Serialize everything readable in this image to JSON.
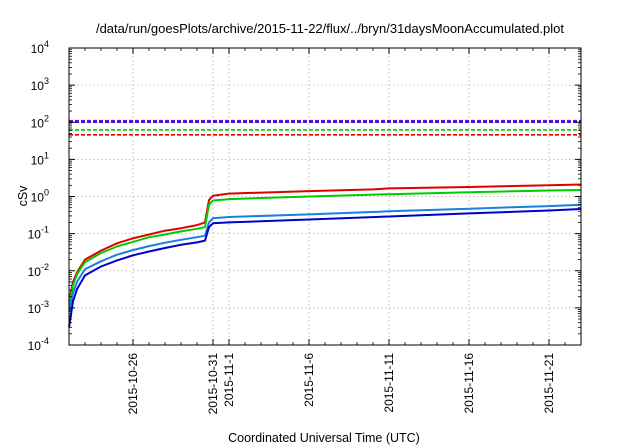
{
  "chart_data": {
    "type": "line",
    "title": "/data/run/goesPlots/archive/2015-11-22/flux/../bryn/31daysMoonAccumulated.plot",
    "xlabel": "Coordinated Universal Time (UTC)",
    "ylabel": "cSv",
    "yscale": "log",
    "ylim": [
      0.0001,
      10000
    ],
    "xlim": [
      "2015-10-22",
      "2015-11-23"
    ],
    "grid": true,
    "x_ticks": [
      "2015-10-26",
      "2015-10-31",
      "2015-11-1",
      "2015-11-6",
      "2015-11-11",
      "2015-11-16",
      "2015-11-21"
    ],
    "x_tick_dates": [
      "2015-10-26",
      "2015-10-31",
      "2015-11-01",
      "2015-11-06",
      "2015-11-11",
      "2015-11-16",
      "2015-11-21"
    ],
    "y_ticks": [
      {
        "base": "10",
        "exp": "-4",
        "value": 0.0001
      },
      {
        "base": "10",
        "exp": "-3",
        "value": 0.001
      },
      {
        "base": "10",
        "exp": "-2",
        "value": 0.01
      },
      {
        "base": "10",
        "exp": "-1",
        "value": 0.1
      },
      {
        "base": "10",
        "exp": "0",
        "value": 1
      },
      {
        "base": "10",
        "exp": "1",
        "value": 10
      },
      {
        "base": "10",
        "exp": "2",
        "value": 100
      },
      {
        "base": "10",
        "exp": "3",
        "value": 1000
      },
      {
        "base": "10",
        "exp": "4",
        "value": 10000
      }
    ],
    "reference_lines": [
      {
        "value": 110,
        "color": "#7b00d4"
      },
      {
        "value": 100,
        "color": "#1f1fd8"
      },
      {
        "value": 62,
        "color": "#00cc00"
      },
      {
        "value": 46,
        "color": "#e00000"
      }
    ],
    "series": [
      {
        "color": "#e00000",
        "points": [
          [
            "2015-10-22",
            0.0015
          ],
          [
            "2015-10-22T06:00",
            0.005
          ],
          [
            "2015-10-22T12:00",
            0.009
          ],
          [
            "2015-10-23",
            0.02
          ],
          [
            "2015-10-24",
            0.035
          ],
          [
            "2015-10-25",
            0.055
          ],
          [
            "2015-10-26",
            0.075
          ],
          [
            "2015-10-27",
            0.095
          ],
          [
            "2015-10-28",
            0.12
          ],
          [
            "2015-10-29",
            0.14
          ],
          [
            "2015-10-30",
            0.17
          ],
          [
            "2015-10-30T12:00",
            0.2
          ],
          [
            "2015-10-30T18:00",
            0.8
          ],
          [
            "2015-10-31",
            1.05
          ],
          [
            "2015-11-01",
            1.2
          ],
          [
            "2015-11-06",
            1.4
          ],
          [
            "2015-11-10",
            1.55
          ],
          [
            "2015-11-11",
            1.65
          ],
          [
            "2015-11-16",
            1.8
          ],
          [
            "2015-11-21",
            2.0
          ],
          [
            "2015-11-23",
            2.1
          ]
        ]
      },
      {
        "color": "#00cc00",
        "points": [
          [
            "2015-10-22",
            0.0012
          ],
          [
            "2015-10-22T06:00",
            0.004
          ],
          [
            "2015-10-22T12:00",
            0.008
          ],
          [
            "2015-10-23",
            0.017
          ],
          [
            "2015-10-24",
            0.03
          ],
          [
            "2015-10-25",
            0.045
          ],
          [
            "2015-10-26",
            0.06
          ],
          [
            "2015-10-27",
            0.08
          ],
          [
            "2015-10-28",
            0.095
          ],
          [
            "2015-10-29",
            0.115
          ],
          [
            "2015-10-30",
            0.135
          ],
          [
            "2015-10-30T12:00",
            0.15
          ],
          [
            "2015-10-30T18:00",
            0.6
          ],
          [
            "2015-10-31",
            0.78
          ],
          [
            "2015-11-01",
            0.85
          ],
          [
            "2015-11-06",
            1.0
          ],
          [
            "2015-11-11",
            1.15
          ],
          [
            "2015-11-16",
            1.3
          ],
          [
            "2015-11-21",
            1.45
          ],
          [
            "2015-11-23",
            1.5
          ]
        ]
      },
      {
        "color": "#1a7fe0",
        "points": [
          [
            "2015-10-22",
            0.0008
          ],
          [
            "2015-10-22T06:00",
            0.0025
          ],
          [
            "2015-10-22T12:00",
            0.005
          ],
          [
            "2015-10-23",
            0.011
          ],
          [
            "2015-10-24",
            0.018
          ],
          [
            "2015-10-25",
            0.027
          ],
          [
            "2015-10-26",
            0.036
          ],
          [
            "2015-10-27",
            0.046
          ],
          [
            "2015-10-28",
            0.057
          ],
          [
            "2015-10-29",
            0.068
          ],
          [
            "2015-10-30",
            0.08
          ],
          [
            "2015-10-30T12:00",
            0.088
          ],
          [
            "2015-10-30T18:00",
            0.2
          ],
          [
            "2015-10-31",
            0.26
          ],
          [
            "2015-11-01",
            0.28
          ],
          [
            "2015-11-06",
            0.33
          ],
          [
            "2015-11-11",
            0.4
          ],
          [
            "2015-11-16",
            0.47
          ],
          [
            "2015-11-21",
            0.55
          ],
          [
            "2015-11-23",
            0.6
          ]
        ]
      },
      {
        "color": "#0000cc",
        "points": [
          [
            "2015-10-22",
            0.0003
          ],
          [
            "2015-10-22T06:00",
            0.0015
          ],
          [
            "2015-10-22T12:00",
            0.0032
          ],
          [
            "2015-10-23",
            0.0075
          ],
          [
            "2015-10-24",
            0.013
          ],
          [
            "2015-10-25",
            0.019
          ],
          [
            "2015-10-26",
            0.026
          ],
          [
            "2015-10-27",
            0.033
          ],
          [
            "2015-10-28",
            0.041
          ],
          [
            "2015-10-29",
            0.05
          ],
          [
            "2015-10-30",
            0.058
          ],
          [
            "2015-10-30T12:00",
            0.065
          ],
          [
            "2015-10-30T18:00",
            0.15
          ],
          [
            "2015-10-31",
            0.19
          ],
          [
            "2015-11-01",
            0.2
          ],
          [
            "2015-11-06",
            0.24
          ],
          [
            "2015-11-11",
            0.29
          ],
          [
            "2015-11-16",
            0.35
          ],
          [
            "2015-11-21",
            0.42
          ],
          [
            "2015-11-23",
            0.46
          ]
        ]
      }
    ]
  }
}
